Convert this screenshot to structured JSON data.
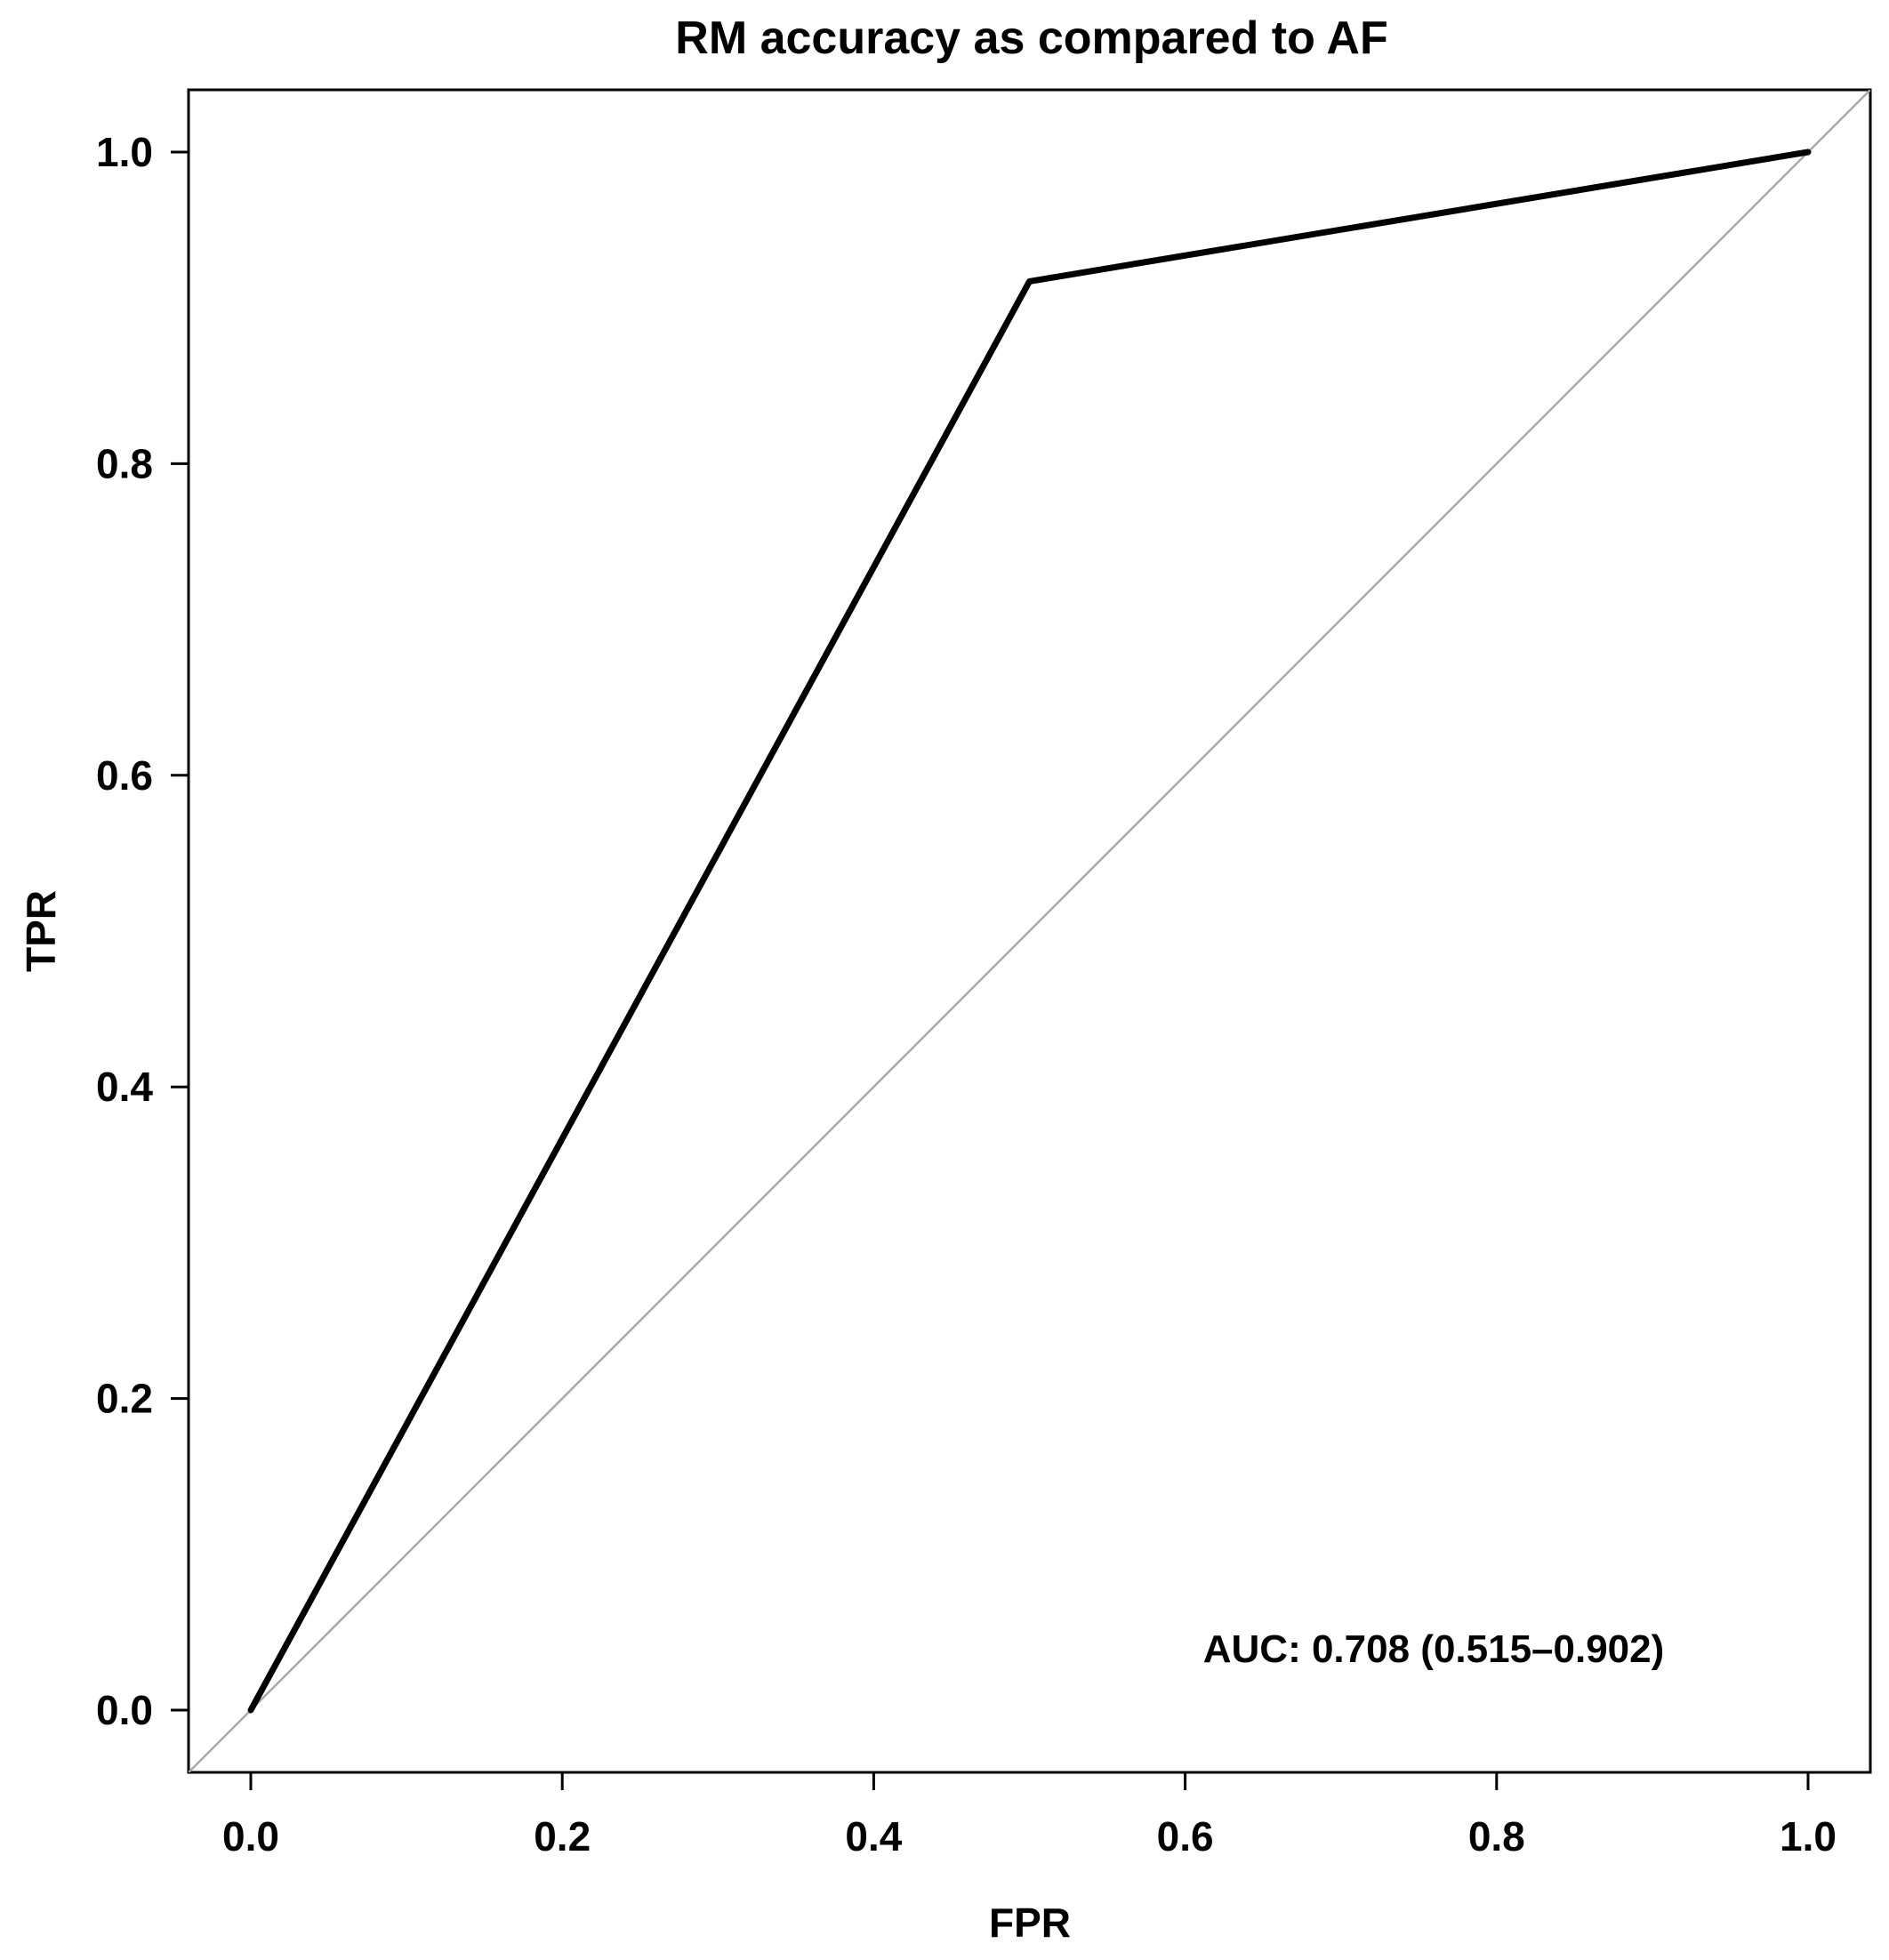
{
  "chart_data": {
    "type": "line",
    "title": "RM accuracy as compared to AF",
    "xlabel": "FPR",
    "ylabel": "TPR",
    "xlim": [
      0.0,
      1.0
    ],
    "ylim": [
      0.0,
      1.0
    ],
    "x_ticks": [
      "0.0",
      "0.2",
      "0.4",
      "0.6",
      "0.8",
      "1.0"
    ],
    "y_ticks": [
      "0.0",
      "0.2",
      "0.4",
      "0.6",
      "0.8",
      "1.0"
    ],
    "grid": false,
    "series": [
      {
        "x": [
          0.0,
          0.5,
          1.0
        ],
        "y": [
          0.0,
          0.917,
          1.0
        ],
        "color": "#000000"
      }
    ],
    "reference_line": {
      "x": [
        0.0,
        1.0
      ],
      "y": [
        0.0,
        1.0
      ],
      "color": "#aaaaaa"
    },
    "annotations": [
      {
        "text": "AUC: 0.708 (0.515–0.902)",
        "x": 0.76,
        "y": 0.04
      }
    ]
  }
}
